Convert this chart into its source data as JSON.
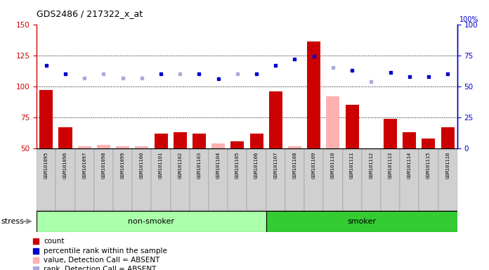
{
  "title": "GDS2486 / 217322_x_at",
  "samples": [
    "GSM101095",
    "GSM101096",
    "GSM101097",
    "GSM101098",
    "GSM101099",
    "GSM101100",
    "GSM101101",
    "GSM101102",
    "GSM101103",
    "GSM101104",
    "GSM101105",
    "GSM101106",
    "GSM101107",
    "GSM101108",
    "GSM101109",
    "GSM101110",
    "GSM101111",
    "GSM101112",
    "GSM101113",
    "GSM101114",
    "GSM101115",
    "GSM101116"
  ],
  "count_values": [
    97,
    67,
    52,
    53,
    52,
    52,
    62,
    63,
    62,
    54,
    56,
    62,
    96,
    52,
    136,
    92,
    85,
    50,
    74,
    63,
    58,
    67
  ],
  "rank_values": [
    117,
    110,
    107,
    110,
    107,
    107,
    110,
    110,
    110,
    106,
    110,
    110,
    117,
    122,
    124,
    115,
    113,
    104,
    111,
    108,
    108,
    110
  ],
  "count_absent": [
    false,
    false,
    true,
    true,
    true,
    true,
    false,
    false,
    false,
    true,
    false,
    false,
    false,
    true,
    false,
    true,
    false,
    true,
    false,
    false,
    false,
    false
  ],
  "rank_absent": [
    false,
    false,
    true,
    true,
    true,
    true,
    false,
    true,
    false,
    false,
    true,
    false,
    false,
    false,
    false,
    true,
    false,
    true,
    false,
    false,
    false,
    false
  ],
  "non_smoker_count": 12,
  "ylim_left": [
    50,
    150
  ],
  "ylim_right": [
    0,
    100
  ],
  "yticks_left": [
    50,
    75,
    100,
    125,
    150
  ],
  "yticks_right": [
    0,
    25,
    50,
    75,
    100
  ],
  "color_red_dark": "#cc0000",
  "color_red_light": "#ffb0b0",
  "color_blue_dark": "#0000cc",
  "color_blue_light": "#aaaadd",
  "bg_color_chart": "#ffffff",
  "bg_color_label": "#d0d0d0",
  "bg_color_nonsmoker": "#aaffaa",
  "bg_color_smoker": "#33cc33",
  "stress_label": "stress",
  "nonsmoker_label": "non-smoker",
  "smoker_label": "smoker",
  "legend_items": [
    {
      "label": "count",
      "color": "#cc0000"
    },
    {
      "label": "percentile rank within the sample",
      "color": "#0000cc"
    },
    {
      "label": "value, Detection Call = ABSENT",
      "color": "#ffb0b0"
    },
    {
      "label": "rank, Detection Call = ABSENT",
      "color": "#aaaadd"
    }
  ]
}
